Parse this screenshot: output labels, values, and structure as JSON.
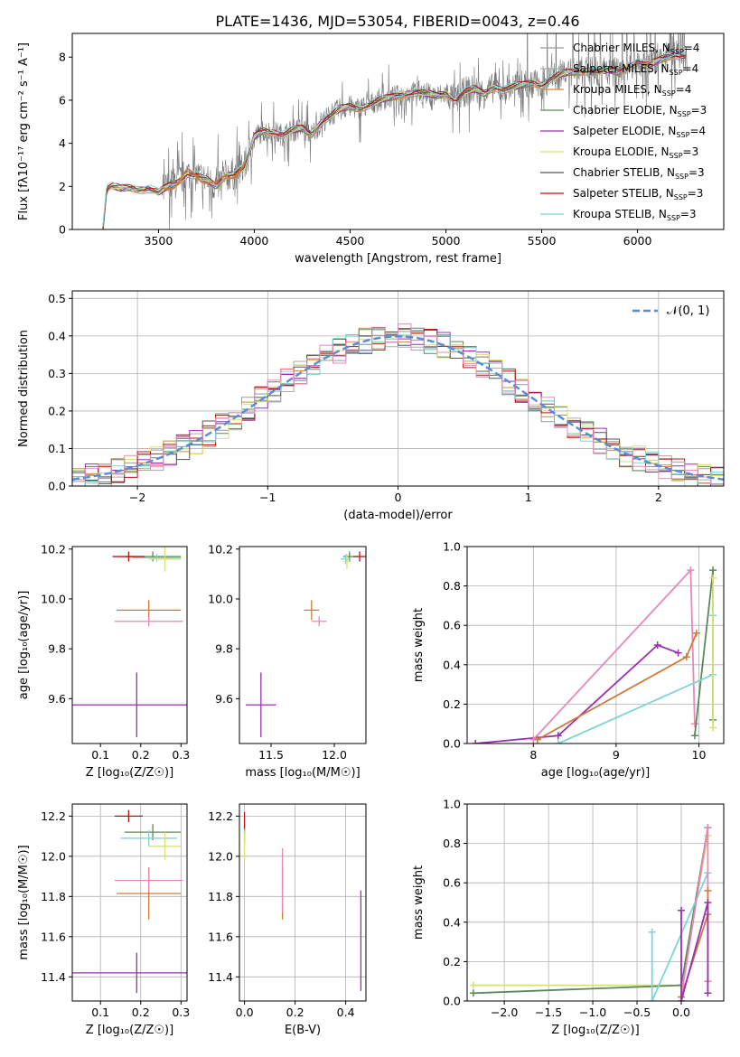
{
  "figure_title": "PLATE=1436, MJD=53054, FIBERID=0043, z=0.46",
  "colors": {
    "chabrier_miles": "#999999",
    "salpeter_miles": "#aaaaaa",
    "kroupa_miles": "#d4883a",
    "chabrier_elodie": "#5a8a5a",
    "salpeter_elodie": "#9a2fb0",
    "kroupa_elodie": "#d8e070",
    "chabrier_stelib": "#555555",
    "salpeter_stelib": "#b81414",
    "kroupa_stelib": "#7fd4d8",
    "pink": "#e888b8",
    "orange": "#d07a3a",
    "teal": "#7fc0c8",
    "normal_fit": "#5b8dd6"
  },
  "chart_data": [
    {
      "id": "spectrum",
      "type": "line",
      "title": "PLATE=1436, MJD=53054, FIBERID=0043, z=0.46",
      "xlabel": "wavelength [Angstrom, rest frame]",
      "ylabel": "Flux [fλ10⁻¹⁷ erg cm⁻² s⁻¹ A⁻¹]",
      "xlim": [
        3050,
        6450
      ],
      "ylim": [
        0,
        9.1
      ],
      "xticks": [
        "3500",
        "4000",
        "4500",
        "5000",
        "5500",
        "6000"
      ],
      "yticks": [
        "0",
        "2",
        "4",
        "6",
        "8"
      ],
      "legend_position": "top-right",
      "legend": [
        {
          "label": "Chabrier MILES, N",
          "sub": "SSP",
          "suffix": "=4",
          "color": "#999999"
        },
        {
          "label": "Salpeter MILES, N",
          "sub": "SSP",
          "suffix": "=4",
          "color": "#aaaaaa"
        },
        {
          "label": "Kroupa MILES, N",
          "sub": "SSP",
          "suffix": "=4",
          "color": "#d4883a"
        },
        {
          "label": "Chabrier ELODIE, N",
          "sub": "SSP",
          "suffix": "=3",
          "color": "#5a8a5a"
        },
        {
          "label": "Salpeter ELODIE, N",
          "sub": "SSP",
          "suffix": "=4",
          "color": "#9a2fb0"
        },
        {
          "label": "Kroupa ELODIE, N",
          "sub": "SSP",
          "suffix": "=3",
          "color": "#d8e070"
        },
        {
          "label": "Chabrier STELIB, N",
          "sub": "SSP",
          "suffix": "=3",
          "color": "#555555"
        },
        {
          "label": "Salpeter STELIB, N",
          "sub": "SSP",
          "suffix": "=3",
          "color": "#b81414"
        },
        {
          "label": "Kroupa STELIB, N",
          "sub": "SSP",
          "suffix": "=3",
          "color": "#7fd4d8"
        }
      ],
      "continuum": [
        [
          3210,
          0.0
        ],
        [
          3230,
          1.9
        ],
        [
          3260,
          2.0
        ],
        [
          3300,
          1.9
        ],
        [
          3350,
          1.95
        ],
        [
          3400,
          1.85
        ],
        [
          3450,
          1.9
        ],
        [
          3500,
          1.7
        ],
        [
          3550,
          2.0
        ],
        [
          3600,
          2.2
        ],
        [
          3650,
          2.6
        ],
        [
          3700,
          2.5
        ],
        [
          3750,
          2.3
        ],
        [
          3800,
          2.0
        ],
        [
          3850,
          2.5
        ],
        [
          3900,
          2.6
        ],
        [
          3950,
          2.9
        ],
        [
          4000,
          4.3
        ],
        [
          4050,
          4.6
        ],
        [
          4100,
          4.5
        ],
        [
          4150,
          4.4
        ],
        [
          4200,
          4.6
        ],
        [
          4250,
          4.7
        ],
        [
          4300,
          4.4
        ],
        [
          4350,
          5.0
        ],
        [
          4400,
          5.3
        ],
        [
          4450,
          5.6
        ],
        [
          4500,
          5.7
        ],
        [
          4550,
          5.6
        ],
        [
          4600,
          5.8
        ],
        [
          4650,
          6.0
        ],
        [
          4700,
          6.1
        ],
        [
          4750,
          6.2
        ],
        [
          4800,
          6.3
        ],
        [
          4850,
          6.4
        ],
        [
          4900,
          6.3
        ],
        [
          4950,
          6.2
        ],
        [
          5000,
          6.3
        ],
        [
          5050,
          6.0
        ],
        [
          5100,
          6.4
        ],
        [
          5150,
          6.5
        ],
        [
          5200,
          6.3
        ],
        [
          5250,
          6.6
        ],
        [
          5300,
          6.5
        ],
        [
          5350,
          6.6
        ],
        [
          5400,
          6.7
        ],
        [
          5450,
          6.8
        ],
        [
          5500,
          6.7
        ],
        [
          5550,
          7.0
        ],
        [
          5600,
          7.2
        ],
        [
          5650,
          7.3
        ],
        [
          5700,
          7.3
        ],
        [
          5750,
          7.4
        ],
        [
          5800,
          7.3
        ],
        [
          5850,
          7.4
        ],
        [
          5900,
          7.3
        ],
        [
          5950,
          7.5
        ],
        [
          6000,
          7.8
        ],
        [
          6050,
          7.6
        ],
        [
          6100,
          7.8
        ],
        [
          6150,
          8.0
        ],
        [
          6200,
          8.1
        ],
        [
          6250,
          8.0
        ]
      ]
    },
    {
      "id": "residuals",
      "type": "histogram",
      "xlabel": "(data-model)/error",
      "ylabel": "Normed distribution",
      "xlim": [
        -2.5,
        2.5
      ],
      "ylim": [
        0,
        0.52
      ],
      "xticks": [
        "−2",
        "−1",
        "0",
        "1",
        "2"
      ],
      "yticks": [
        "0.0",
        "0.1",
        "0.2",
        "0.3",
        "0.4",
        "0.5"
      ],
      "grid": true,
      "legend_position": "top-right",
      "legend": [
        {
          "label": "𝒩(0, 1)",
          "color": "#5b8dd6",
          "style": "dashed"
        }
      ]
    },
    {
      "id": "z-age",
      "type": "scatter",
      "xlabel": "Z [log₁₀(Z/Z☉)]",
      "ylabel": "age  [log₁₀(age/yr)]",
      "xlim": [
        0.03,
        0.315
      ],
      "ylim": [
        9.42,
        10.21
      ],
      "xticks": [
        "0.1",
        "0.2",
        "0.3"
      ],
      "yticks": [
        "9.6",
        "9.8",
        "10.0",
        "10.2"
      ],
      "points": [
        {
          "x": 0.19,
          "y": 9.575,
          "xerr": 0.16,
          "yerr": 0.13,
          "color": "#9a2fb0"
        },
        {
          "x": 0.22,
          "y": 9.955,
          "xerr": 0.08,
          "yerr": 0.04,
          "color": "#d07a3a"
        },
        {
          "x": 0.22,
          "y": 9.91,
          "xerr": 0.085,
          "yerr": 0.02,
          "color": "#e888b8"
        },
        {
          "x": 0.23,
          "y": 10.17,
          "xerr": 0.07,
          "yerr": 0.02,
          "color": "#5a8a5a"
        },
        {
          "x": 0.24,
          "y": 10.165,
          "xerr": 0.06,
          "yerr": 0.015,
          "color": "#7fd4d8"
        },
        {
          "x": 0.26,
          "y": 10.16,
          "xerr": 0.04,
          "yerr": 0.05,
          "color": "#d8e070"
        },
        {
          "x": 0.17,
          "y": 10.17,
          "xerr": 0.04,
          "yerr": 0.02,
          "color": "#b81414"
        }
      ]
    },
    {
      "id": "mass-age",
      "type": "scatter",
      "xlabel": "mass [log₁₀(M/M☉)]",
      "ylabel": "",
      "xlim": [
        11.25,
        12.25
      ],
      "ylim": [
        9.42,
        10.21
      ],
      "xticks": [
        "11.5",
        "12.0"
      ],
      "yticks": [
        "9.6",
        "9.8",
        "10.0",
        "10.2"
      ],
      "points": [
        {
          "x": 11.42,
          "y": 9.575,
          "xerr": 0.12,
          "yerr": 0.13,
          "color": "#9a2fb0"
        },
        {
          "x": 11.82,
          "y": 9.955,
          "xerr": 0.06,
          "yerr": 0.04,
          "color": "#d07a3a"
        },
        {
          "x": 11.88,
          "y": 9.91,
          "xerr": 0.06,
          "yerr": 0.02,
          "color": "#e888b8"
        },
        {
          "x": 12.12,
          "y": 10.17,
          "xerr": 0.05,
          "yerr": 0.02,
          "color": "#5a8a5a"
        },
        {
          "x": 12.09,
          "y": 10.16,
          "xerr": 0.04,
          "yerr": 0.02,
          "color": "#7fd4d8"
        },
        {
          "x": 12.1,
          "y": 10.15,
          "xerr": 0.03,
          "yerr": 0.03,
          "color": "#d8e070"
        },
        {
          "x": 12.2,
          "y": 10.17,
          "xerr": 0.05,
          "yerr": 0.02,
          "color": "#b81414"
        }
      ]
    },
    {
      "id": "age-weight",
      "type": "line",
      "xlabel": "age  [log₁₀(age/yr)]",
      "ylabel": "mass weight",
      "xlim": [
        7.2,
        10.3
      ],
      "ylim": [
        0,
        1.0
      ],
      "xticks": [
        "8",
        "9",
        "10"
      ],
      "yticks": [
        "0.0",
        "0.2",
        "0.4",
        "0.6",
        "0.8",
        "1.0"
      ],
      "grid": true,
      "series": [
        {
          "color": "#9a2fb0",
          "points": [
            [
              7.3,
              0.0
            ],
            [
              8.3,
              0.04
            ],
            [
              9.5,
              0.5
            ],
            [
              9.75,
              0.46
            ]
          ]
        },
        {
          "color": "#e888b8",
          "points": [
            [
              8.0,
              0.02
            ],
            [
              9.9,
              0.88
            ],
            [
              9.95,
              0.1
            ]
          ]
        },
        {
          "color": "#d07a3a",
          "points": [
            [
              8.05,
              0.02
            ],
            [
              9.85,
              0.44
            ],
            [
              9.97,
              0.56
            ]
          ]
        },
        {
          "color": "#5a8a5a",
          "points": [
            [
              9.95,
              0.04
            ],
            [
              10.17,
              0.88
            ],
            [
              10.17,
              0.12
            ]
          ]
        },
        {
          "color": "#7fd4d8",
          "points": [
            [
              8.3,
              0.0
            ],
            [
              10.17,
              0.35
            ],
            [
              10.17,
              0.65
            ]
          ]
        },
        {
          "color": "#d8e070",
          "points": [
            [
              10.17,
              0.08
            ],
            [
              10.17,
              0.84
            ]
          ]
        }
      ]
    },
    {
      "id": "z-mass",
      "type": "scatter",
      "xlabel": "Z [log₁₀(Z/Z☉)]",
      "ylabel": "mass [log₁₀(M/M☉)]",
      "xlim": [
        0.03,
        0.315
      ],
      "ylim": [
        11.28,
        12.26
      ],
      "xticks": [
        "0.1",
        "0.2",
        "0.3"
      ],
      "yticks": [
        "11.4",
        "11.6",
        "11.8",
        "12.0",
        "12.2"
      ],
      "grid": true,
      "points": [
        {
          "x": 0.19,
          "y": 11.42,
          "xerr": 0.16,
          "yerr": 0.1,
          "color": "#9a2fb0"
        },
        {
          "x": 0.22,
          "y": 11.815,
          "xerr": 0.08,
          "yerr": 0.13,
          "color": "#d07a3a"
        },
        {
          "x": 0.22,
          "y": 11.88,
          "xerr": 0.085,
          "yerr": 0.06,
          "color": "#e888b8"
        },
        {
          "x": 0.23,
          "y": 12.12,
          "xerr": 0.07,
          "yerr": 0.04,
          "color": "#5a8a5a"
        },
        {
          "x": 0.22,
          "y": 12.09,
          "xerr": 0.07,
          "yerr": 0.04,
          "color": "#7fd4d8"
        },
        {
          "x": 0.26,
          "y": 12.05,
          "xerr": 0.04,
          "yerr": 0.07,
          "color": "#d8e070"
        },
        {
          "x": 0.17,
          "y": 12.2,
          "xerr": 0.035,
          "yerr": 0.03,
          "color": "#b81414"
        }
      ]
    },
    {
      "id": "ebv-mass",
      "type": "scatter",
      "xlabel": "E(B-V)",
      "ylabel": "",
      "xlim": [
        -0.02,
        0.48
      ],
      "ylim": [
        11.28,
        12.26
      ],
      "xticks": [
        "0.0",
        "0.2",
        "0.4"
      ],
      "yticks": [
        "11.4",
        "11.6",
        "11.8",
        "12.0",
        "12.2"
      ],
      "grid": true,
      "points": [
        {
          "x": 0.46,
          "y": 11.58,
          "yerr": 0.25,
          "color": "#9a2fb0"
        },
        {
          "x": 0.15,
          "y": 11.815,
          "yerr": 0.13,
          "color": "#d07a3a"
        },
        {
          "x": 0.15,
          "y": 11.88,
          "yerr": 0.16,
          "color": "#e888b8"
        },
        {
          "x": 0.0,
          "y": 12.12,
          "yerr": 0.04,
          "color": "#5a8a5a"
        },
        {
          "x": 0.0,
          "y": 12.09,
          "yerr": 0.04,
          "color": "#7fd4d8"
        },
        {
          "x": 0.0,
          "y": 12.05,
          "yerr": 0.07,
          "color": "#d8e070"
        },
        {
          "x": 0.0,
          "y": 12.18,
          "yerr": 0.04,
          "color": "#b81414"
        }
      ]
    },
    {
      "id": "z-weight",
      "type": "line",
      "xlabel": "Z [log₁₀(Z/Z☉)]",
      "ylabel": "mass weight",
      "xlim": [
        -2.42,
        0.48
      ],
      "ylim": [
        0,
        1.0
      ],
      "xticks": [
        "−2.0",
        "−1.5",
        "−1.0",
        "−0.5",
        "0.0"
      ],
      "yticks": [
        "0.0",
        "0.2",
        "0.4",
        "0.6",
        "0.8",
        "1.0"
      ],
      "grid": true,
      "series": [
        {
          "color": "#d8e070",
          "points": [
            [
              -2.35,
              0.08
            ],
            [
              0.0,
              0.08
            ],
            [
              0.3,
              0.84
            ]
          ]
        },
        {
          "color": "#5a8a5a",
          "points": [
            [
              -2.35,
              0.04
            ],
            [
              0.0,
              0.08
            ],
            [
              0.3,
              0.88
            ]
          ]
        },
        {
          "color": "#7fd4d8",
          "points": [
            [
              -0.33,
              0.35
            ],
            [
              -0.33,
              0.0
            ],
            [
              0.3,
              0.65
            ]
          ]
        },
        {
          "color": "#e888b8",
          "points": [
            [
              0.0,
              0.02
            ],
            [
              0.3,
              0.88
            ],
            [
              0.3,
              0.1
            ]
          ]
        },
        {
          "color": "#d07a3a",
          "points": [
            [
              0.0,
              0.02
            ],
            [
              0.3,
              0.44
            ],
            [
              0.3,
              0.56
            ]
          ]
        },
        {
          "color": "#9a2fb0",
          "points": [
            [
              0.0,
              0.46
            ],
            [
              0.0,
              0.0
            ],
            [
              0.3,
              0.5
            ],
            [
              0.3,
              0.04
            ]
          ]
        }
      ]
    }
  ]
}
